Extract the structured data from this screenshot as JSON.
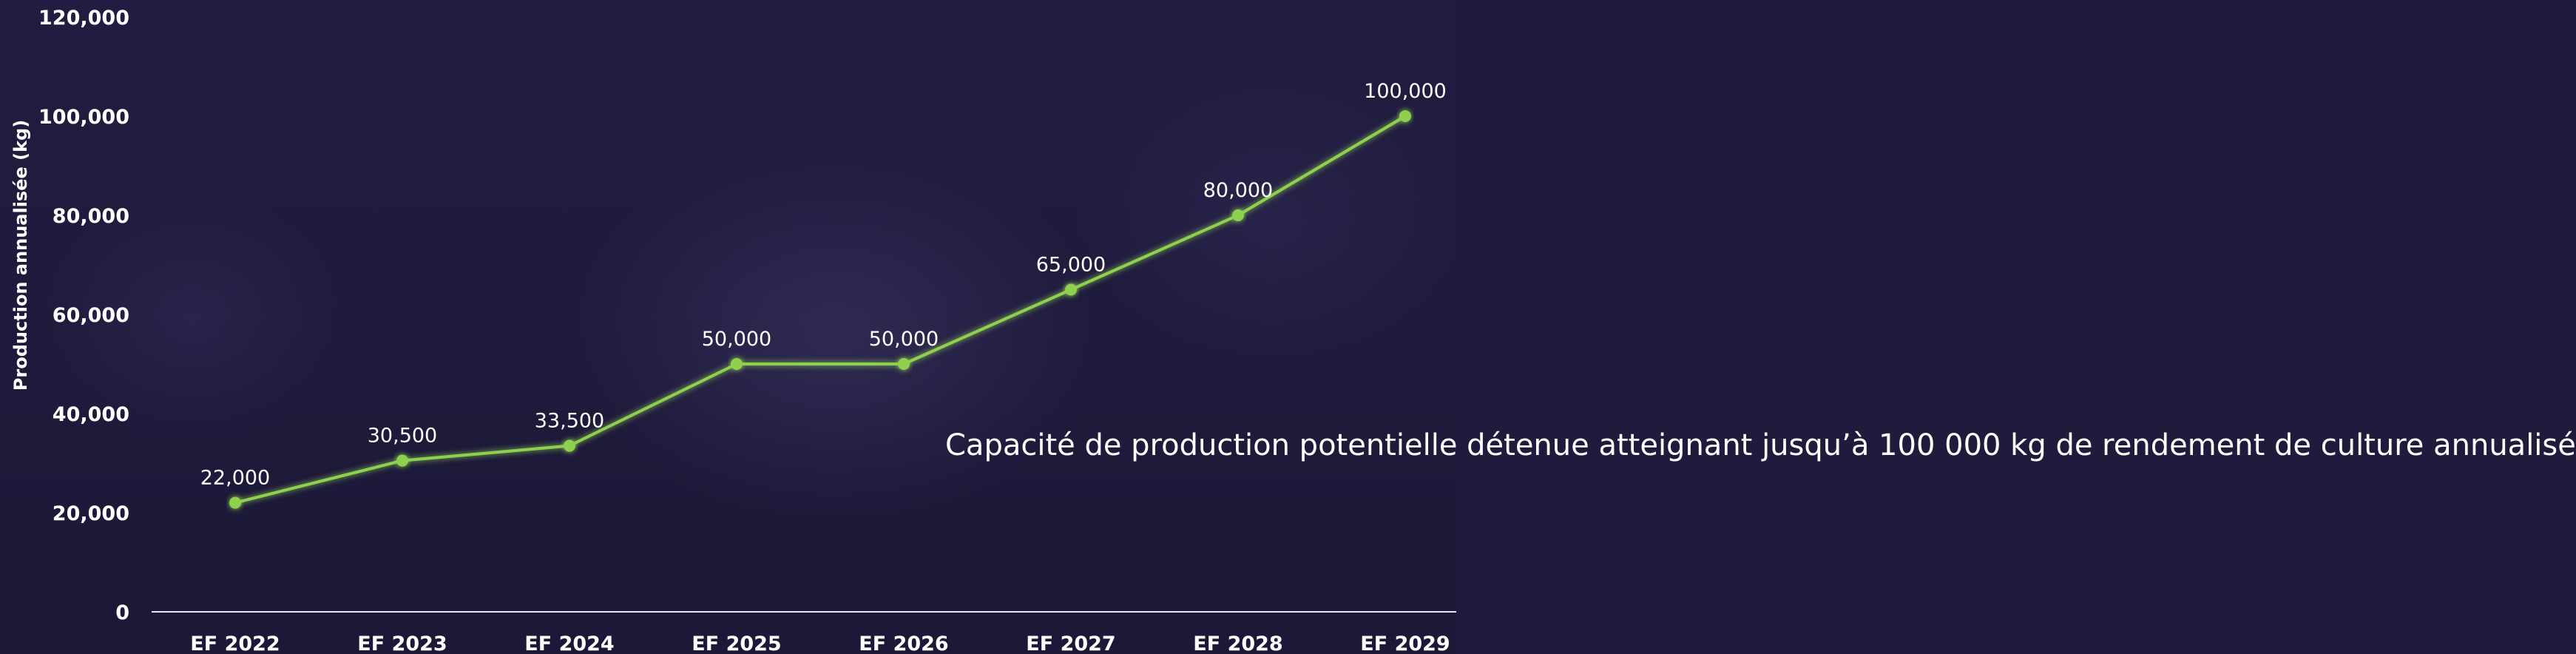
{
  "chart_data": {
    "type": "line",
    "categories": [
      "EF 2022",
      "EF 2023",
      "EF 2024",
      "EF 2025",
      "EF 2026",
      "EF 2027",
      "EF 2028",
      "EF 2029"
    ],
    "series": [
      {
        "values": [
          22000,
          30500,
          33500,
          50000,
          50000,
          65000,
          80000,
          100000
        ],
        "data_labels": [
          "22,000",
          "30,500",
          "33,500",
          "50,000",
          "50,000",
          "65,000",
          "80,000",
          "100,000"
        ],
        "color": "#8fd14f"
      }
    ],
    "ylabel": "Production annualisée (kg)",
    "xlabel": "",
    "ylim": [
      0,
      120000
    ],
    "yticks": [
      0,
      20000,
      40000,
      60000,
      80000,
      100000,
      120000
    ],
    "ytick_labels": [
      "0",
      "20,000",
      "40,000",
      "60,000",
      "80,000",
      "100,000",
      "120,000"
    ],
    "grid": false,
    "legend": "none",
    "annotation": "Capacité de production potentielle détenue atteignant jusqu’à 100 000 kg de rendement de culture annualisé"
  },
  "colors": {
    "background": "#1f1b3d",
    "line": "#8fd14f",
    "text": "#ffffff"
  }
}
